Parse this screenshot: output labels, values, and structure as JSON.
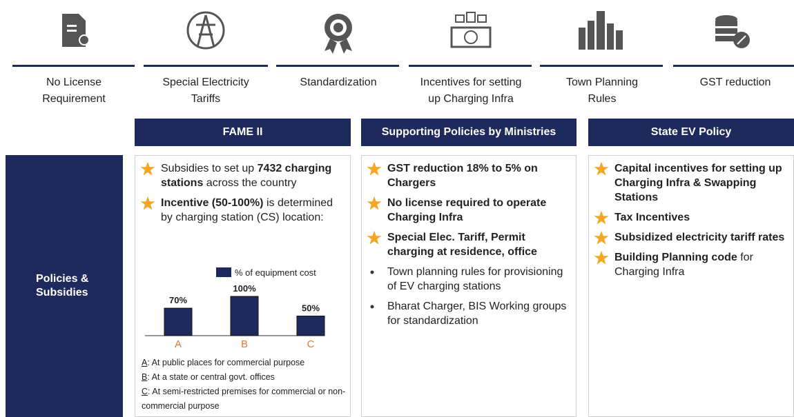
{
  "top_items": [
    [
      "No License",
      "Requirement"
    ],
    [
      "Special Electricity",
      "Tariffs"
    ],
    [
      "Standardization"
    ],
    [
      "Incentives for setting",
      "up Charging Infra"
    ],
    [
      "Town Planning",
      "Rules"
    ],
    [
      "GST reduction"
    ]
  ],
  "row_label": [
    "Policies &",
    "Subsidies"
  ],
  "columns": [
    {
      "header": "FAME II",
      "items": [
        {
          "marker": "star",
          "runs": [
            {
              "text": "Subsidies to set up "
            },
            {
              "text": "7432 charging stations",
              "bold": true
            },
            {
              "text": " across the country"
            }
          ]
        },
        {
          "marker": "star",
          "runs": [
            {
              "text": "Incentive (50-100%)",
              "bold": true
            },
            {
              "text": " is determined by charging station (CS) location:"
            }
          ]
        }
      ]
    },
    {
      "header": "Supporting Policies by Ministries",
      "items": [
        {
          "marker": "star",
          "runs": [
            {
              "text": "GST reduction 18% to 5% on Chargers",
              "bold": true
            }
          ]
        },
        {
          "marker": "star",
          "runs": [
            {
              "text": "No license required to operate Charging Infra",
              "bold": true
            }
          ]
        },
        {
          "marker": "star",
          "runs": [
            {
              "text": "Special Elec. Tariff, Permit charging at residence, office",
              "bold": true
            }
          ]
        },
        {
          "marker": "dot",
          "runs": [
            {
              "text": "Town planning rules for provisioning of EV charging stations"
            }
          ]
        },
        {
          "marker": "dot",
          "runs": [
            {
              "text": "Bharat Charger, BIS Working groups for standardization"
            }
          ]
        }
      ]
    },
    {
      "header": "State EV Policy",
      "items": [
        {
          "marker": "star",
          "runs": [
            {
              "text": "Capital incentives for setting up Charging Infra & Swapping Stations",
              "bold": true
            }
          ]
        },
        {
          "marker": "star",
          "runs": [
            {
              "text": "Tax Incentives",
              "bold": true
            }
          ]
        },
        {
          "marker": "star",
          "runs": [
            {
              "text": "Subsidized electricity tariff rates",
              "bold": true
            }
          ]
        },
        {
          "marker": "star",
          "runs": [
            {
              "text": "Building Planning code",
              "bold": true
            },
            {
              "text": " for Charging Infra"
            }
          ]
        }
      ]
    }
  ],
  "chart": {
    "type": "bar",
    "legend": "% of equipment cost",
    "color": "#1f2a5c",
    "category_color": "#e8782a",
    "categories": [
      "A",
      "B",
      "C"
    ],
    "values": [
      70,
      100,
      50
    ],
    "value_labels": [
      "70%",
      "100%",
      "50%"
    ]
  },
  "footnotes": [
    [
      {
        "text": "A",
        "underline": true
      },
      {
        "text": ": At public places for commercial purpose"
      }
    ],
    [
      {
        "text": "B",
        "underline": true
      },
      {
        "text": ": At a state or central govt. offices"
      }
    ],
    [
      {
        "text": "C",
        "underline": true
      },
      {
        "text": ": At semi-restricted premises for commercial or non-commercial purpose"
      }
    ]
  ]
}
